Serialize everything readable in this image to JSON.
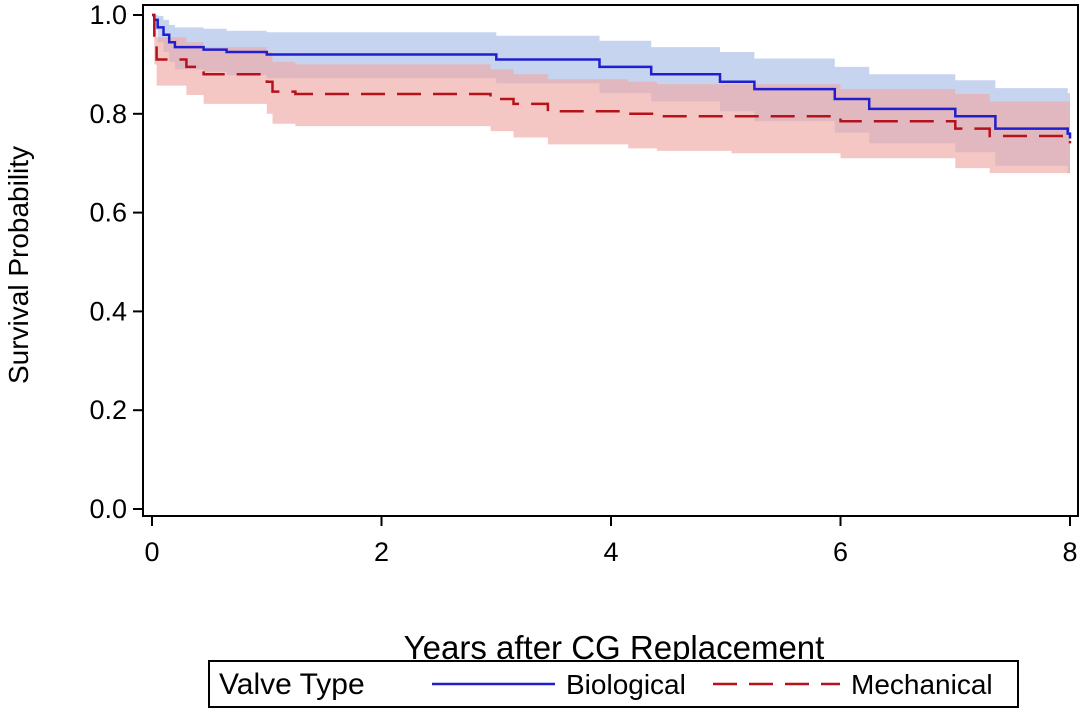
{
  "chart_data": {
    "type": "line",
    "subtype": "kaplan-meier",
    "title": "",
    "xlabel": "Years after CG Replacement",
    "ylabel": "Survival Probability",
    "xlim": [
      0,
      8
    ],
    "ylim": [
      0,
      1
    ],
    "x_ticks": [
      0,
      2,
      4,
      6,
      8
    ],
    "x_tick_labels": [
      "0",
      "2",
      "4",
      "6",
      "8"
    ],
    "y_ticks": [
      0,
      0.2,
      0.4,
      0.6,
      0.8,
      1.0
    ],
    "y_tick_labels": [
      "0.0",
      "0.2",
      "0.4",
      "0.6",
      "0.8",
      "1.0"
    ],
    "grid": false,
    "legend": {
      "title": "Valve Type",
      "position": "bottom",
      "entries": [
        "Biological",
        "Mechanical"
      ]
    },
    "series": [
      {
        "name": "Biological",
        "color": "#1f1fcf",
        "band_color": "#a9bde6",
        "line_style": "solid",
        "steps": [
          [
            0,
            1.0
          ],
          [
            0.02,
            0.99
          ],
          [
            0.05,
            0.975
          ],
          [
            0.1,
            0.96
          ],
          [
            0.15,
            0.945
          ],
          [
            0.2,
            0.935
          ],
          [
            0.45,
            0.93
          ],
          [
            0.65,
            0.925
          ],
          [
            1.0,
            0.92
          ],
          [
            3.0,
            0.91
          ],
          [
            3.9,
            0.895
          ],
          [
            4.35,
            0.88
          ],
          [
            4.95,
            0.865
          ],
          [
            5.25,
            0.85
          ],
          [
            5.95,
            0.83
          ],
          [
            6.25,
            0.81
          ],
          [
            7.0,
            0.795
          ],
          [
            7.35,
            0.77
          ],
          [
            7.98,
            0.76
          ],
          [
            8.0,
            0.75
          ]
        ],
        "lower": [
          [
            0,
            1.0
          ],
          [
            0.02,
            0.97
          ],
          [
            0.05,
            0.945
          ],
          [
            0.1,
            0.925
          ],
          [
            0.15,
            0.905
          ],
          [
            0.2,
            0.89
          ],
          [
            0.45,
            0.885
          ],
          [
            0.65,
            0.878
          ],
          [
            1.0,
            0.872
          ],
          [
            3.0,
            0.862
          ],
          [
            3.9,
            0.842
          ],
          [
            4.35,
            0.825
          ],
          [
            4.95,
            0.805
          ],
          [
            5.25,
            0.785
          ],
          [
            5.95,
            0.762
          ],
          [
            6.25,
            0.74
          ],
          [
            7.0,
            0.722
          ],
          [
            7.35,
            0.695
          ],
          [
            7.98,
            0.68
          ],
          [
            8.0,
            0.64
          ]
        ],
        "upper": [
          [
            0,
            1.0
          ],
          [
            0.02,
            1.0
          ],
          [
            0.05,
            0.998
          ],
          [
            0.1,
            0.99
          ],
          [
            0.15,
            0.98
          ],
          [
            0.2,
            0.975
          ],
          [
            0.45,
            0.972
          ],
          [
            0.65,
            0.968
          ],
          [
            1.0,
            0.965
          ],
          [
            3.0,
            0.958
          ],
          [
            3.9,
            0.948
          ],
          [
            4.35,
            0.935
          ],
          [
            4.95,
            0.925
          ],
          [
            5.25,
            0.912
          ],
          [
            5.95,
            0.895
          ],
          [
            6.25,
            0.88
          ],
          [
            7.0,
            0.868
          ],
          [
            7.35,
            0.852
          ],
          [
            7.98,
            0.842
          ],
          [
            8.0,
            0.84
          ]
        ]
      },
      {
        "name": "Mechanical",
        "color": "#b5121b",
        "band_color": "#f0a9a4",
        "line_style": "dashed",
        "steps": [
          [
            0,
            1.0
          ],
          [
            0.02,
            0.94
          ],
          [
            0.04,
            0.91
          ],
          [
            0.3,
            0.895
          ],
          [
            0.45,
            0.88
          ],
          [
            1.0,
            0.865
          ],
          [
            1.05,
            0.845
          ],
          [
            1.25,
            0.84
          ],
          [
            2.95,
            0.83
          ],
          [
            3.15,
            0.82
          ],
          [
            3.45,
            0.805
          ],
          [
            4.15,
            0.8
          ],
          [
            4.4,
            0.795
          ],
          [
            5.05,
            0.795
          ],
          [
            6.0,
            0.785
          ],
          [
            7.0,
            0.77
          ],
          [
            7.3,
            0.755
          ],
          [
            7.98,
            0.755
          ],
          [
            8.0,
            0.74
          ]
        ],
        "lower": [
          [
            0,
            1.0
          ],
          [
            0.02,
            0.9
          ],
          [
            0.04,
            0.857
          ],
          [
            0.3,
            0.838
          ],
          [
            0.45,
            0.82
          ],
          [
            1.0,
            0.8
          ],
          [
            1.05,
            0.78
          ],
          [
            1.25,
            0.775
          ],
          [
            2.95,
            0.765
          ],
          [
            3.15,
            0.752
          ],
          [
            3.45,
            0.738
          ],
          [
            4.15,
            0.73
          ],
          [
            4.4,
            0.725
          ],
          [
            5.05,
            0.72
          ],
          [
            6.0,
            0.71
          ],
          [
            7.0,
            0.69
          ],
          [
            7.3,
            0.68
          ],
          [
            7.98,
            0.68
          ],
          [
            8.0,
            0.68
          ]
        ],
        "upper": [
          [
            0,
            1.0
          ],
          [
            0.02,
            0.97
          ],
          [
            0.04,
            0.955
          ],
          [
            0.3,
            0.945
          ],
          [
            0.45,
            0.935
          ],
          [
            1.0,
            0.925
          ],
          [
            1.05,
            0.905
          ],
          [
            1.25,
            0.9
          ],
          [
            2.95,
            0.89
          ],
          [
            3.15,
            0.88
          ],
          [
            3.45,
            0.87
          ],
          [
            4.15,
            0.865
          ],
          [
            4.4,
            0.86
          ],
          [
            5.05,
            0.86
          ],
          [
            6.0,
            0.85
          ],
          [
            7.0,
            0.84
          ],
          [
            7.3,
            0.825
          ],
          [
            7.98,
            0.825
          ],
          [
            8.0,
            0.8
          ]
        ]
      }
    ]
  }
}
